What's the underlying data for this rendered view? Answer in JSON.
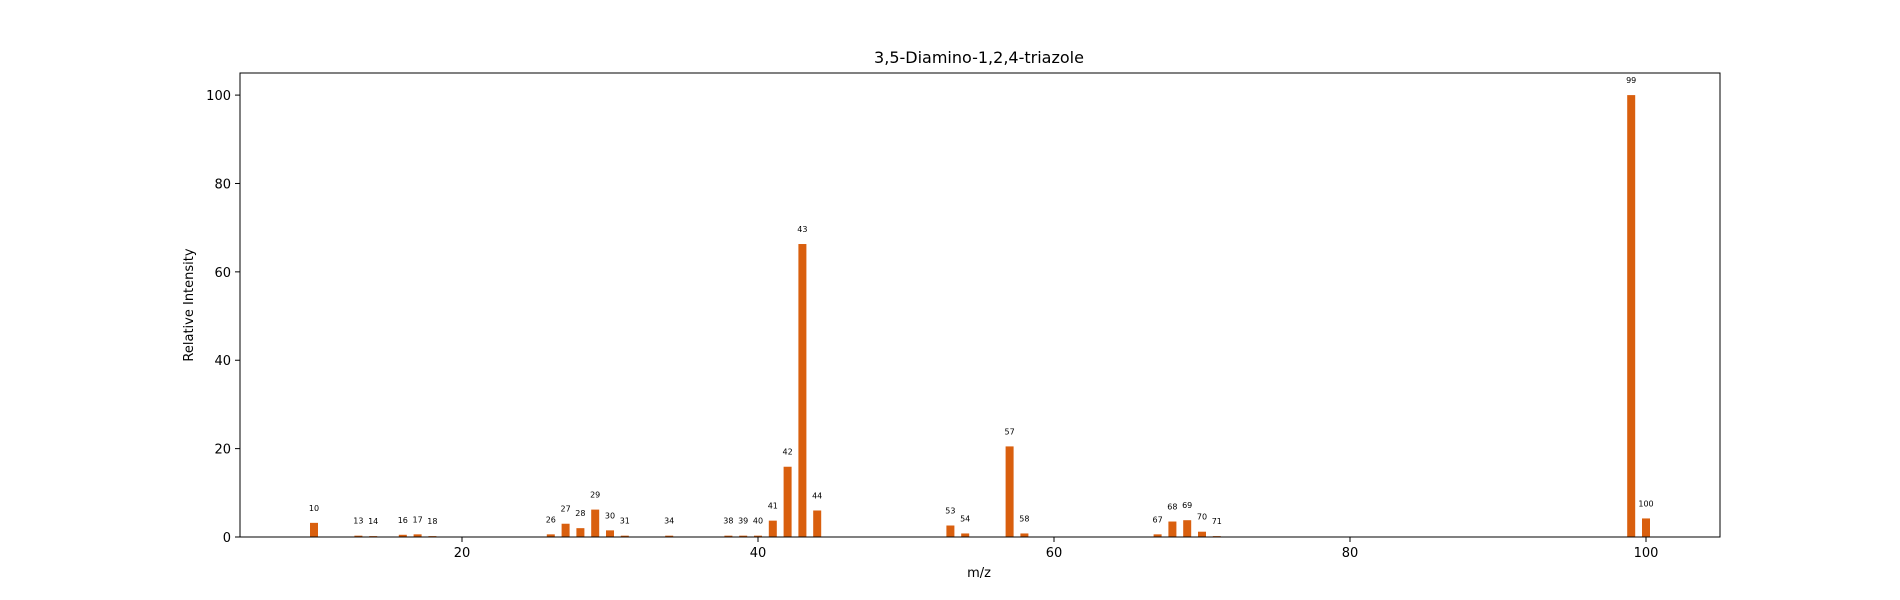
{
  "chart_data": {
    "type": "bar",
    "title": "3,5-Diamino-1,2,4-triazole",
    "xlabel": "m/z",
    "ylabel": "Relative Intensity",
    "xlim": [
      5,
      105
    ],
    "ylim": [
      0,
      105
    ],
    "xticks": [
      20,
      40,
      60,
      80,
      100
    ],
    "yticks": [
      0,
      20,
      40,
      60,
      80,
      100
    ],
    "bar_color": "#d95f0e",
    "grid": false,
    "points": [
      {
        "mz": 10,
        "intensity": 3.2,
        "label": "10"
      },
      {
        "mz": 13,
        "intensity": 0.3,
        "label": "13"
      },
      {
        "mz": 14,
        "intensity": 0.2,
        "label": "14"
      },
      {
        "mz": 16,
        "intensity": 0.5,
        "label": "16"
      },
      {
        "mz": 17,
        "intensity": 0.6,
        "label": "17"
      },
      {
        "mz": 18,
        "intensity": 0.2,
        "label": "18"
      },
      {
        "mz": 26,
        "intensity": 0.6,
        "label": "26"
      },
      {
        "mz": 27,
        "intensity": 3.0,
        "label": "27"
      },
      {
        "mz": 28,
        "intensity": 2.0,
        "label": "28"
      },
      {
        "mz": 29,
        "intensity": 6.2,
        "label": "29"
      },
      {
        "mz": 30,
        "intensity": 1.5,
        "label": "30"
      },
      {
        "mz": 31,
        "intensity": 0.3,
        "label": "31"
      },
      {
        "mz": 34,
        "intensity": 0.3,
        "label": "34"
      },
      {
        "mz": 38,
        "intensity": 0.3,
        "label": "38"
      },
      {
        "mz": 39,
        "intensity": 0.3,
        "label": "39"
      },
      {
        "mz": 40,
        "intensity": 0.3,
        "label": "40"
      },
      {
        "mz": 41,
        "intensity": 3.7,
        "label": "41"
      },
      {
        "mz": 42,
        "intensity": 15.9,
        "label": "42"
      },
      {
        "mz": 43,
        "intensity": 66.3,
        "label": "43"
      },
      {
        "mz": 44,
        "intensity": 6.0,
        "label": "44"
      },
      {
        "mz": 53,
        "intensity": 2.6,
        "label": "53"
      },
      {
        "mz": 54,
        "intensity": 0.8,
        "label": "54"
      },
      {
        "mz": 57,
        "intensity": 20.5,
        "label": "57"
      },
      {
        "mz": 58,
        "intensity": 0.8,
        "label": "58"
      },
      {
        "mz": 67,
        "intensity": 0.6,
        "label": "67"
      },
      {
        "mz": 68,
        "intensity": 3.5,
        "label": "68"
      },
      {
        "mz": 69,
        "intensity": 3.8,
        "label": "69"
      },
      {
        "mz": 70,
        "intensity": 1.2,
        "label": "70"
      },
      {
        "mz": 71,
        "intensity": 0.2,
        "label": "71"
      },
      {
        "mz": 99,
        "intensity": 100.0,
        "label": "99"
      },
      {
        "mz": 100,
        "intensity": 4.2,
        "label": "100"
      }
    ]
  }
}
